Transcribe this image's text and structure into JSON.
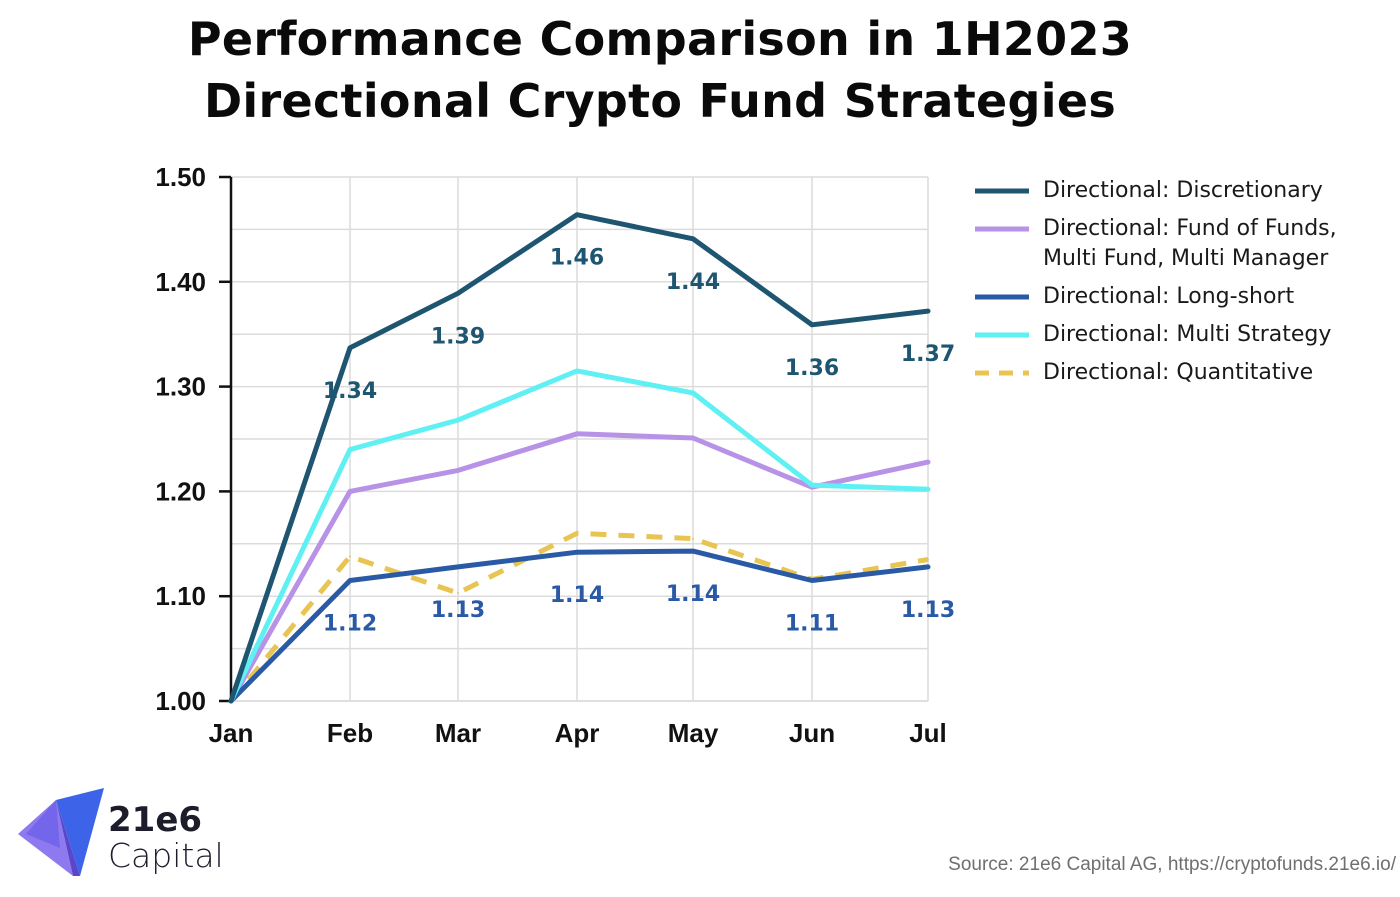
{
  "title_line1": "Performance Comparison in 1H2023",
  "title_line2": "Directional Crypto Fund Strategies",
  "logo": {
    "name": "21e6",
    "sub": "Capital"
  },
  "source": "Source: 21e6 Capital AG, https://cryptofunds.21e6.io/",
  "chart_data": {
    "type": "line",
    "title": "Performance Comparison in 1H2023 Directional Crypto Fund Strategies",
    "xlabel": "",
    "ylabel": "",
    "categories": [
      "Jan",
      "Feb",
      "Mar",
      "Apr",
      "May",
      "Jun",
      "Jul"
    ],
    "ylim": [
      1.0,
      1.5
    ],
    "yticks": [
      "1.00",
      "1.10",
      "1.20",
      "1.30",
      "1.40",
      "1.50"
    ],
    "grid": true,
    "legend_position": "right",
    "series": [
      {
        "name": "Directional: Discretionary",
        "color": "#1e5570",
        "style": "solid",
        "values": [
          1.0,
          1.337,
          1.389,
          1.464,
          1.441,
          1.359,
          1.372
        ],
        "labels": [
          "",
          "1.34",
          "1.39",
          "1.46",
          "1.44",
          "1.36",
          "1.37"
        ],
        "label_placement": "below"
      },
      {
        "name": "Directional: Fund of Funds, Multi Fund, Multi Manager",
        "color": "#b792e6",
        "style": "solid",
        "values": [
          1.0,
          1.2,
          1.22,
          1.255,
          1.251,
          1.204,
          1.228
        ],
        "labels": []
      },
      {
        "name": "Directional: Long-short",
        "color": "#2a5aa6",
        "style": "solid",
        "values": [
          1.0,
          1.115,
          1.128,
          1.142,
          1.143,
          1.115,
          1.128
        ],
        "labels": [
          "",
          "1.12",
          "1.13",
          "1.14",
          "1.14",
          "1.11",
          "1.13"
        ],
        "label_placement": "below"
      },
      {
        "name": "Directional: Multi Strategy",
        "color": "#5ff0f3",
        "style": "solid",
        "values": [
          1.0,
          1.24,
          1.268,
          1.315,
          1.294,
          1.206,
          1.202
        ],
        "labels": []
      },
      {
        "name": "Directional: Quantitative",
        "color": "#e8c453",
        "style": "dashed",
        "values": [
          1.0,
          1.138,
          1.103,
          1.16,
          1.155,
          1.116,
          1.135
        ],
        "labels": []
      }
    ]
  }
}
